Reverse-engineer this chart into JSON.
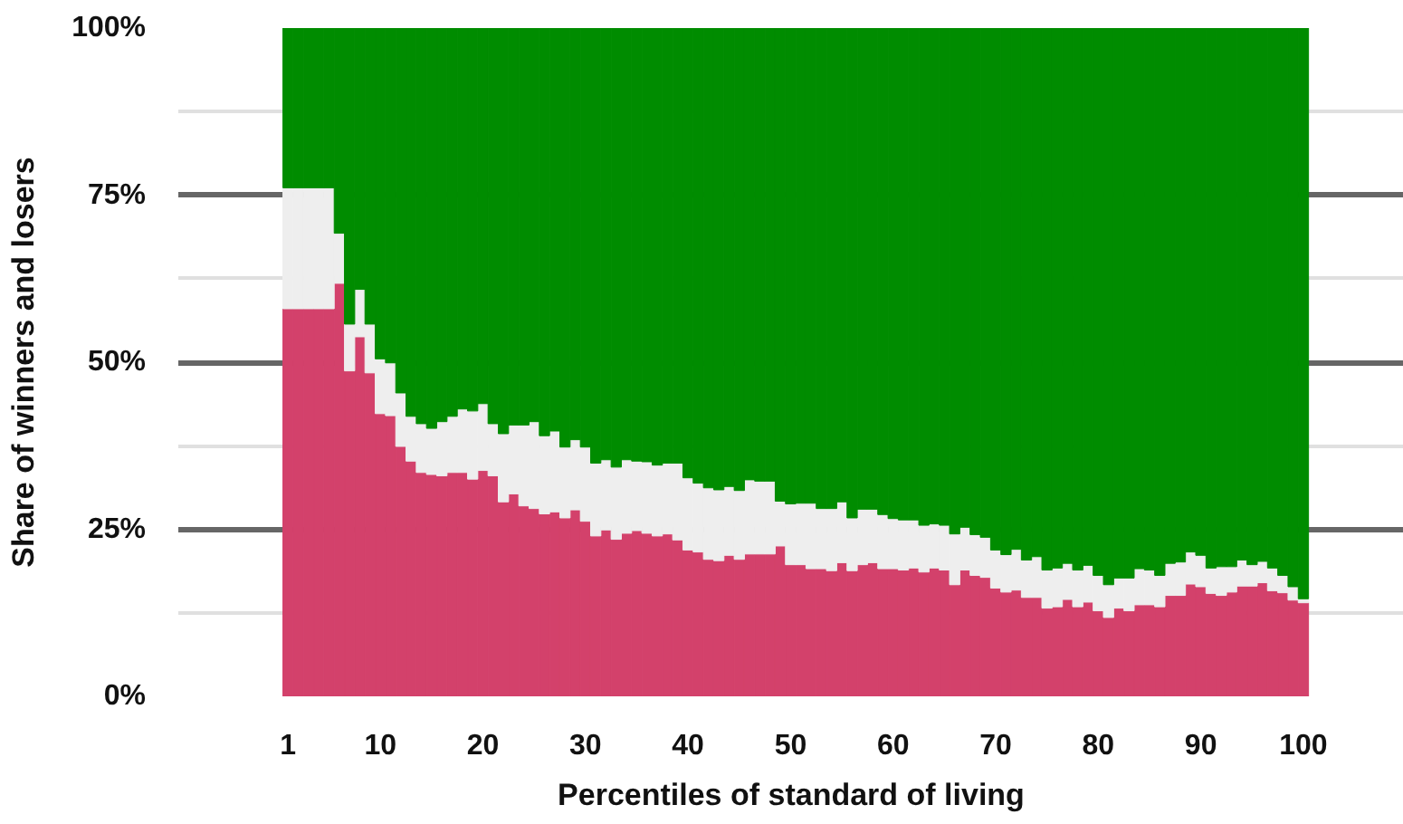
{
  "chart_data": {
    "type": "bar",
    "stacked": true,
    "xlabel": "Percentiles of standard of living",
    "ylabel": "Share of winners and losers",
    "x": [
      1,
      2,
      3,
      4,
      5,
      6,
      7,
      8,
      9,
      10,
      11,
      12,
      13,
      14,
      15,
      16,
      17,
      18,
      19,
      20,
      21,
      22,
      23,
      24,
      25,
      26,
      27,
      28,
      29,
      30,
      31,
      32,
      33,
      34,
      35,
      36,
      37,
      38,
      39,
      40,
      41,
      42,
      43,
      44,
      45,
      46,
      47,
      48,
      49,
      50,
      51,
      52,
      53,
      54,
      55,
      56,
      57,
      58,
      59,
      60,
      61,
      62,
      63,
      64,
      65,
      66,
      67,
      68,
      69,
      70,
      71,
      72,
      73,
      74,
      75,
      76,
      77,
      78,
      79,
      80,
      81,
      82,
      83,
      84,
      85,
      86,
      87,
      88,
      89,
      90,
      91,
      92,
      93,
      94,
      95,
      96,
      97,
      98,
      99,
      100
    ],
    "series": [
      {
        "color": "#d3416b",
        "values": [
          58.0,
          58.0,
          58.0,
          58.0,
          58.0,
          61.8,
          48.7,
          53.8,
          48.4,
          42.3,
          42.0,
          37.4,
          35.2,
          33.5,
          33.2,
          33.0,
          33.5,
          33.5,
          32.5,
          33.8,
          33.0,
          29.1,
          30.3,
          28.5,
          28.1,
          27.3,
          27.6,
          26.7,
          27.9,
          26.2,
          24.0,
          24.9,
          23.5,
          24.4,
          24.8,
          24.4,
          24.0,
          24.3,
          23.4,
          21.9,
          21.6,
          20.5,
          20.3,
          21.1,
          20.5,
          21.3,
          21.3,
          21.3,
          22.5,
          19.7,
          19.7,
          19.1,
          19.1,
          18.8,
          20.0,
          18.8,
          19.7,
          20.0,
          19.1,
          19.1,
          18.9,
          19.2,
          18.6,
          19.2,
          18.9,
          16.7,
          18.9,
          18.1,
          17.8,
          16.2,
          15.6,
          15.9,
          14.8,
          14.8,
          13.2,
          13.4,
          14.5,
          13.4,
          14.1,
          12.8,
          11.8,
          13.2,
          12.8,
          13.7,
          13.7,
          13.4,
          15.1,
          15.1,
          16.8,
          16.4,
          15.4,
          15.1,
          15.6,
          16.5,
          16.5,
          17.0,
          15.8,
          15.5,
          14.4,
          14.0
        ]
      },
      {
        "color": "#eeeeee",
        "values": [
          18.1,
          18.1,
          18.1,
          18.1,
          18.1,
          7.5,
          7.0,
          7.1,
          7.3,
          8.2,
          7.9,
          8.0,
          6.7,
          7.3,
          6.9,
          8.1,
          8.4,
          9.5,
          10.2,
          10.0,
          7.8,
          10.2,
          10.3,
          12.1,
          13.0,
          11.7,
          12.1,
          10.6,
          10.5,
          11.1,
          10.9,
          10.5,
          10.8,
          11.0,
          10.4,
          10.7,
          10.6,
          10.6,
          11.5,
          10.8,
          10.3,
          10.7,
          10.6,
          10.3,
          10.3,
          11.1,
          10.9,
          10.9,
          6.7,
          9.1,
          9.2,
          9.8,
          9.0,
          9.3,
          9.1,
          7.9,
          8.3,
          8.0,
          8.1,
          7.5,
          7.5,
          7.2,
          7.0,
          6.6,
          6.7,
          7.6,
          6.4,
          6.1,
          6.0,
          5.7,
          5.6,
          6.1,
          5.6,
          6.1,
          5.7,
          5.8,
          5.4,
          5.5,
          5.5,
          5.3,
          4.9,
          4.5,
          4.9,
          5.4,
          5.2,
          4.7,
          4.8,
          5.0,
          4.8,
          4.7,
          3.8,
          4.3,
          3.8,
          3.9,
          3.2,
          3.2,
          3.4,
          2.6,
          2.0,
          0.6
        ]
      },
      {
        "color": "#008c00",
        "values": [
          23.9,
          23.9,
          23.9,
          23.9,
          23.9,
          30.7,
          44.3,
          39.1,
          44.3,
          49.5,
          50.1,
          54.6,
          58.1,
          59.2,
          59.9,
          58.9,
          58.1,
          57.0,
          57.3,
          56.2,
          59.2,
          60.7,
          59.4,
          59.4,
          58.9,
          61.0,
          60.3,
          62.7,
          61.6,
          62.7,
          65.1,
          64.6,
          65.7,
          64.6,
          64.8,
          64.9,
          65.4,
          65.1,
          65.1,
          67.3,
          68.1,
          68.8,
          69.1,
          68.6,
          69.2,
          67.6,
          67.8,
          67.8,
          70.8,
          71.2,
          71.1,
          71.1,
          71.9,
          71.9,
          70.9,
          73.3,
          72.0,
          72.0,
          72.8,
          73.4,
          73.6,
          73.6,
          74.4,
          74.2,
          74.4,
          75.7,
          74.7,
          75.8,
          76.2,
          78.1,
          78.8,
          78.0,
          79.6,
          79.1,
          81.1,
          80.8,
          80.1,
          81.1,
          80.4,
          81.9,
          83.3,
          82.3,
          82.3,
          80.9,
          81.1,
          81.9,
          80.1,
          79.9,
          78.4,
          78.9,
          80.8,
          80.6,
          80.6,
          79.6,
          80.3,
          79.8,
          80.8,
          81.9,
          83.6,
          85.4
        ]
      }
    ],
    "xlim": [
      -9.7,
      109.8
    ],
    "xticks": [
      1,
      10,
      20,
      30,
      40,
      50,
      60,
      70,
      80,
      90,
      100
    ],
    "ylim": [
      0,
      100
    ],
    "yticks": [
      {
        "value": 0,
        "label": "0%"
      },
      {
        "value": 12.5,
        "label": null
      },
      {
        "value": 25,
        "label": "25%"
      },
      {
        "value": 37.5,
        "label": null
      },
      {
        "value": 50,
        "label": "50%"
      },
      {
        "value": 62.5,
        "label": null
      },
      {
        "value": 75,
        "label": "75%"
      },
      {
        "value": 87.5,
        "label": null
      },
      {
        "value": 100,
        "label": "100%"
      }
    ],
    "grid": "y"
  }
}
